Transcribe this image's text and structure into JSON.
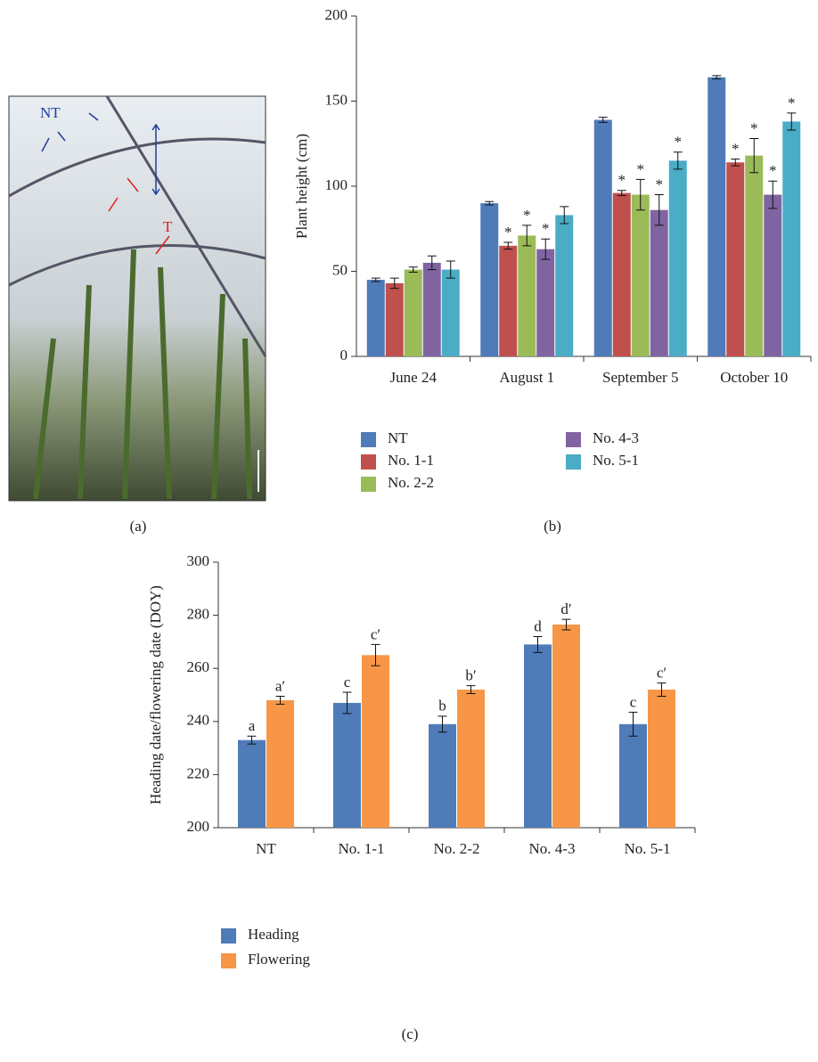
{
  "photo": {
    "labels": [
      "NT",
      "T"
    ],
    "caption": "(a)"
  },
  "chart_data": [
    {
      "type": "bar",
      "caption": "(b)",
      "y_label": "Plant height (cm)",
      "categories": [
        "June 24",
        "August 1",
        "September 5",
        "October 10"
      ],
      "ylim": [
        0,
        200
      ],
      "yticks": [
        0,
        50,
        100,
        150,
        200
      ],
      "series": [
        {
          "name": "NT",
          "color": "#4f7bb9",
          "values": [
            45,
            90,
            139,
            164
          ],
          "errors": [
            1,
            1,
            1.5,
            1
          ],
          "value_labels": [
            null,
            null,
            null,
            null
          ]
        },
        {
          "name": "No. 1-1",
          "color": "#c0504d",
          "values": [
            43,
            65,
            96,
            114
          ],
          "errors": [
            3,
            2,
            1.5,
            2
          ],
          "value_labels": [
            null,
            "*",
            "*",
            "*"
          ]
        },
        {
          "name": "No. 2-2",
          "color": "#9bbb59",
          "values": [
            51,
            71,
            95,
            118
          ],
          "errors": [
            1.5,
            6,
            9,
            10
          ],
          "value_labels": [
            null,
            "*",
            "*",
            "*"
          ]
        },
        {
          "name": "No. 4-3",
          "color": "#8064a2",
          "values": [
            55,
            63,
            86,
            95
          ],
          "errors": [
            4,
            6,
            9,
            8
          ],
          "value_labels": [
            null,
            "*",
            "*",
            "*"
          ]
        },
        {
          "name": "No. 5-1",
          "color": "#4bacc6",
          "values": [
            51,
            83,
            115,
            138
          ],
          "errors": [
            5,
            5,
            5,
            5
          ],
          "value_labels": [
            null,
            null,
            "*",
            "*"
          ]
        }
      ]
    },
    {
      "type": "bar",
      "caption": "(c)",
      "y_label": "Heading date/flowering date (DOY)",
      "categories": [
        "NT",
        "No. 1-1",
        "No. 2-2",
        "No. 4-3",
        "No. 5-1"
      ],
      "ylim": [
        200,
        300
      ],
      "yticks": [
        200,
        220,
        240,
        260,
        280,
        300
      ],
      "series": [
        {
          "name": "Heading",
          "color": "#4f7bb9",
          "values": [
            233,
            247,
            239,
            269,
            239
          ],
          "errors": [
            1.5,
            4,
            3,
            3,
            4.5
          ],
          "value_labels": [
            "a",
            "c",
            "b",
            "d",
            "c"
          ]
        },
        {
          "name": "Flowering",
          "color": "#f79646",
          "values": [
            248,
            265,
            252,
            276.5,
            252
          ],
          "errors": [
            1.5,
            4,
            1.5,
            2,
            2.5
          ],
          "value_labels": [
            "a′",
            "c′",
            "b′",
            "d′",
            "c′"
          ]
        }
      ]
    }
  ]
}
